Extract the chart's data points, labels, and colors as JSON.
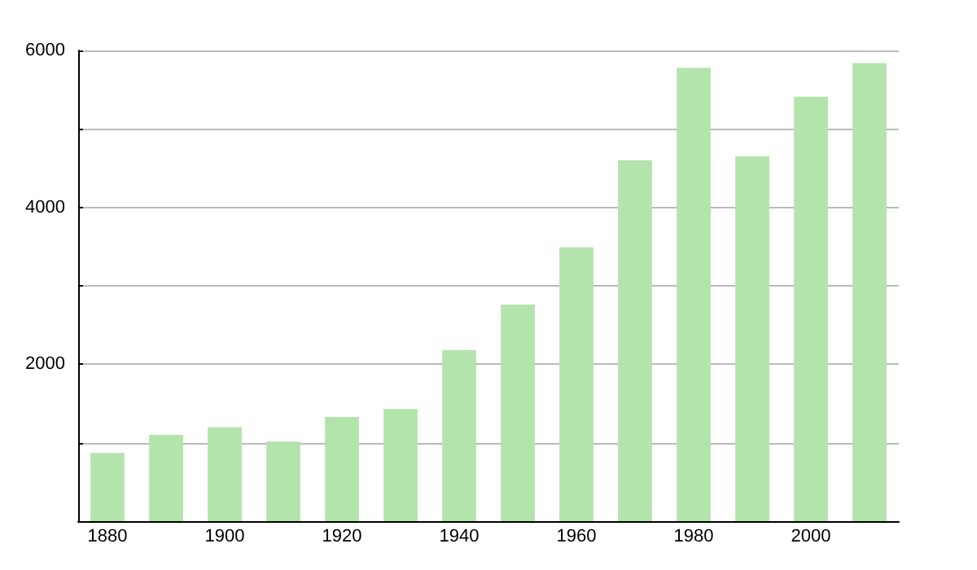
{
  "chart_data": {
    "type": "bar",
    "categories": [
      "1880",
      null,
      "1900",
      null,
      "1920",
      null,
      "1940",
      null,
      "1960",
      null,
      "1980",
      null,
      "2000",
      null
    ],
    "values": [
      870,
      1100,
      1200,
      1015,
      1330,
      1430,
      2180,
      2760,
      3490,
      4600,
      5780,
      4650,
      5410,
      5840
    ],
    "color": "#b3e4ac",
    "ylim": [
      0,
      6000
    ],
    "yticks": [
      {
        "value": 0,
        "label": null
      },
      {
        "value": 1000,
        "label": null
      },
      2000,
      {
        "value": 3000,
        "label": null
      },
      4000,
      {
        "value": 5000,
        "label": null
      },
      6000
    ],
    "grid": true
  }
}
